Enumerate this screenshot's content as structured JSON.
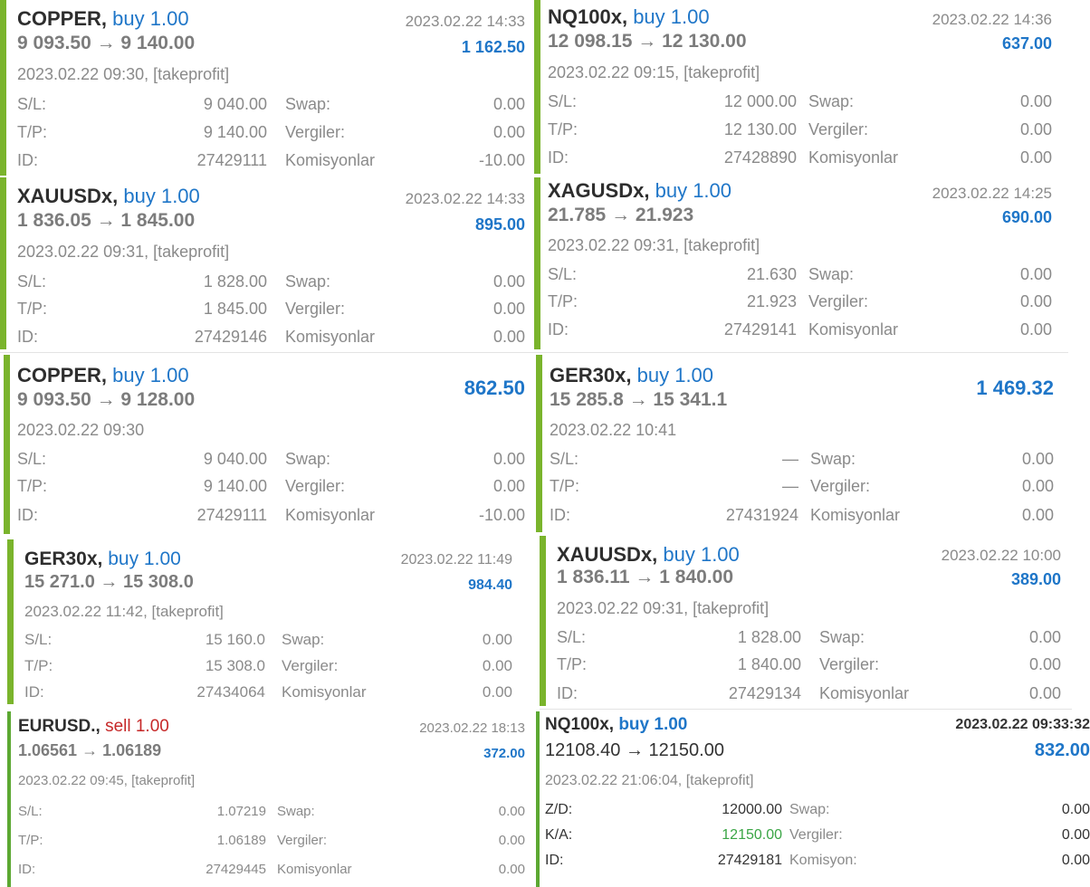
{
  "trades": [
    {
      "symbol": "COPPER,",
      "direction": "buy 1.00",
      "side": "buy",
      "close_time": "2023.02.22 14:33",
      "prices": "9 093.50 → 9 140.00",
      "profit": "1 162.50",
      "open_info": "2023.02.22 09:30, [takeprofit]",
      "sl_label": "S/L:",
      "sl": "9 040.00",
      "tp_label": "T/P:",
      "tp": "9 140.00",
      "id_label": "ID:",
      "id": "27429111",
      "swap_label": "Swap:",
      "swap": "0.00",
      "tax_label": "Vergiler:",
      "tax": "0.00",
      "comm_label": "Komisyonlar",
      "comm": "-10.00"
    },
    {
      "symbol": "NQ100x,",
      "direction": "buy 1.00",
      "side": "buy",
      "close_time": "2023.02.22 14:36",
      "prices": "12 098.15 → 12 130.00",
      "profit": "637.00",
      "open_info": "2023.02.22 09:15, [takeprofit]",
      "sl_label": "S/L:",
      "sl": "12 000.00",
      "tp_label": "T/P:",
      "tp": "12 130.00",
      "id_label": "ID:",
      "id": "27428890",
      "swap_label": "Swap:",
      "swap": "0.00",
      "tax_label": "Vergiler:",
      "tax": "0.00",
      "comm_label": "Komisyonlar",
      "comm": "0.00"
    },
    {
      "symbol": "XAUUSDx,",
      "direction": "buy 1.00",
      "side": "buy",
      "close_time": "2023.02.22 14:33",
      "prices": "1 836.05 → 1 845.00",
      "profit": "895.00",
      "open_info": "2023.02.22 09:31, [takeprofit]",
      "sl_label": "S/L:",
      "sl": "1 828.00",
      "tp_label": "T/P:",
      "tp": "1 845.00",
      "id_label": "ID:",
      "id": "27429146",
      "swap_label": "Swap:",
      "swap": "0.00",
      "tax_label": "Vergiler:",
      "tax": "0.00",
      "comm_label": "Komisyonlar",
      "comm": "0.00"
    },
    {
      "symbol": "XAGUSDx,",
      "direction": "buy 1.00",
      "side": "buy",
      "close_time": "2023.02.22 14:25",
      "prices": "21.785 → 21.923",
      "profit": "690.00",
      "open_info": "2023.02.22 09:31, [takeprofit]",
      "sl_label": "S/L:",
      "sl": "21.630",
      "tp_label": "T/P:",
      "tp": "21.923",
      "id_label": "ID:",
      "id": "27429141",
      "swap_label": "Swap:",
      "swap": "0.00",
      "tax_label": "Vergiler:",
      "tax": "0.00",
      "comm_label": "Komisyonlar",
      "comm": "0.00"
    },
    {
      "symbol": "COPPER,",
      "direction": "buy 1.00",
      "side": "buy",
      "close_time": "",
      "prices": "9 093.50 → 9 128.00",
      "profit": "862.50",
      "open_info": "2023.02.22 09:30",
      "sl_label": "S/L:",
      "sl": "9 040.00",
      "tp_label": "T/P:",
      "tp": "9 140.00",
      "id_label": "ID:",
      "id": "27429111",
      "swap_label": "Swap:",
      "swap": "0.00",
      "tax_label": "Vergiler:",
      "tax": "0.00",
      "comm_label": "Komisyonlar",
      "comm": "-10.00"
    },
    {
      "symbol": "GER30x,",
      "direction": "buy 1.00",
      "side": "buy",
      "close_time": "",
      "prices": "15 285.8 → 15 341.1",
      "profit": "1 469.32",
      "open_info": "2023.02.22 10:41",
      "sl_label": "S/L:",
      "sl": "—",
      "tp_label": "T/P:",
      "tp": "—",
      "id_label": "ID:",
      "id": "27431924",
      "swap_label": "Swap:",
      "swap": "0.00",
      "tax_label": "Vergiler:",
      "tax": "0.00",
      "comm_label": "Komisyonlar",
      "comm": "0.00"
    },
    {
      "symbol": "GER30x,",
      "direction": "buy 1.00",
      "side": "buy",
      "close_time": "2023.02.22 11:49",
      "prices": "15 271.0 → 15 308.0",
      "profit": "984.40",
      "open_info": "2023.02.22 11:42, [takeprofit]",
      "sl_label": "S/L:",
      "sl": "15 160.0",
      "tp_label": "T/P:",
      "tp": "15 308.0",
      "id_label": "ID:",
      "id": "27434064",
      "swap_label": "Swap:",
      "swap": "0.00",
      "tax_label": "Vergiler:",
      "tax": "0.00",
      "comm_label": "Komisyonlar",
      "comm": "0.00"
    },
    {
      "symbol": "XAUUSDx,",
      "direction": "buy 1.00",
      "side": "buy",
      "close_time": "2023.02.22 10:00",
      "prices": "1 836.11 → 1 840.00",
      "profit": "389.00",
      "open_info": "2023.02.22 09:31, [takeprofit]",
      "sl_label": "S/L:",
      "sl": "1 828.00",
      "tp_label": "T/P:",
      "tp": "1 840.00",
      "id_label": "ID:",
      "id": "27429134",
      "swap_label": "Swap:",
      "swap": "0.00",
      "tax_label": "Vergiler:",
      "tax": "0.00",
      "comm_label": "Komisyonlar",
      "comm": "0.00"
    },
    {
      "symbol": "EURUSD.,",
      "direction": "sell 1.00",
      "side": "sell",
      "close_time": "2023.02.22 18:13",
      "prices": "1.06561 → 1.06189",
      "profit": "372.00",
      "open_info": "2023.02.22 09:45, [takeprofit]",
      "sl_label": "S/L:",
      "sl": "1.07219",
      "tp_label": "T/P:",
      "tp": "1.06189",
      "id_label": "ID:",
      "id": "27429445",
      "swap_label": "Swap:",
      "swap": "0.00",
      "tax_label": "Vergiler:",
      "tax": "0.00",
      "comm_label": "Komisyonlar",
      "comm": "0.00"
    },
    {
      "symbol": "NQ100x,",
      "direction": "buy 1.00",
      "side": "buy",
      "close_time": "2023.02.22 09:33:32",
      "prices": "12108.40 → 12150.00",
      "profit": "832.00",
      "open_info": "2023.02.22 21:06:04, [takeprofit]",
      "sl_label": "Z/D:",
      "sl": "12000.00",
      "tp_label": "K/A:",
      "tp": "12150.00",
      "id_label": "ID:",
      "id": "27429181",
      "swap_label": "Swap:",
      "swap": "0.00",
      "tax_label": "Vergiler:",
      "tax": "0.00",
      "comm_label": "Komisyon:",
      "comm": "0.00"
    }
  ],
  "colors": {
    "accent_bar": "#7ab42c",
    "buy": "#1f76c8",
    "sell": "#c62828",
    "profit": "#1f76c8",
    "tp_highlight": "#3aa545"
  }
}
